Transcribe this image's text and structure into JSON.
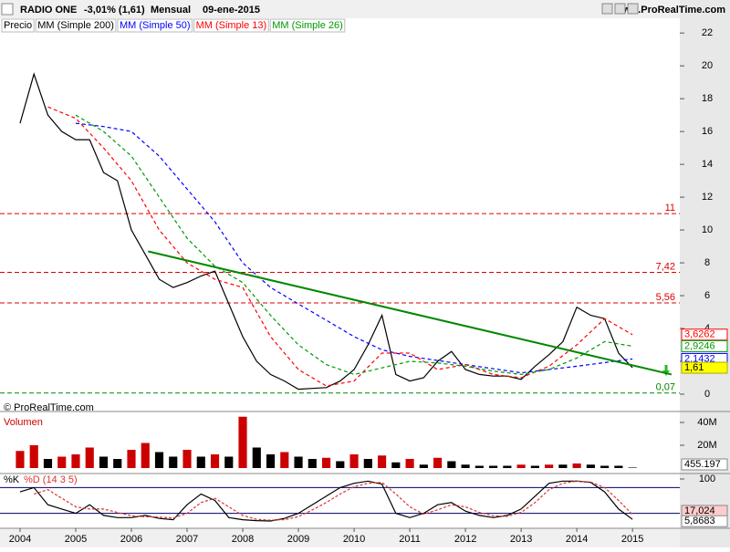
{
  "header": {
    "symbol": "RADIO ONE",
    "change": "-3,01% (1,61)",
    "period": "Mensual",
    "date": "09-ene-2015",
    "site": "www.ProRealTime.com",
    "watermark": "© ProRealTime.com"
  },
  "chart_data": [
    {
      "type": "line",
      "title": "Precio",
      "xlim": [
        2003.64,
        2015.85
      ],
      "ylim": [
        -1,
        22.9
      ],
      "yticks": [
        0,
        2,
        4,
        6,
        8,
        10,
        12,
        14,
        16,
        18,
        20,
        22
      ],
      "series": [
        {
          "name": "Precio",
          "color": "#000000",
          "x": [
            2004,
            2004.25,
            2004.5,
            2004.75,
            2005,
            2005.25,
            2005.5,
            2005.75,
            2006,
            2006.25,
            2006.5,
            2006.75,
            2007,
            2007.25,
            2007.5,
            2007.75,
            2008,
            2008.25,
            2008.5,
            2008.75,
            2009,
            2009.25,
            2009.5,
            2009.75,
            2010,
            2010.25,
            2010.5,
            2010.75,
            2011,
            2011.25,
            2011.5,
            2011.75,
            2012,
            2012.25,
            2012.5,
            2012.75,
            2013,
            2013.25,
            2013.5,
            2013.75,
            2014,
            2014.25,
            2014.5,
            2014.75,
            2015
          ],
          "values": [
            16.5,
            19.5,
            17,
            16,
            15.5,
            15.5,
            13.5,
            13,
            10,
            8.5,
            7,
            6.5,
            6.8,
            7.2,
            7.5,
            5.5,
            3.5,
            2,
            1.2,
            0.8,
            0.3,
            0.35,
            0.4,
            0.8,
            1.5,
            3,
            4.8,
            1.2,
            0.8,
            1,
            2,
            2.6,
            1.5,
            1.2,
            1.1,
            1.1,
            0.9,
            1.7,
            2.4,
            3.2,
            5.3,
            4.8,
            4.6,
            2.5,
            1.61
          ]
        },
        {
          "name": "MM (Simple 200)",
          "color": "#000000",
          "x": [],
          "values": []
        },
        {
          "name": "MM (Simple 50)",
          "color": "#0000ff",
          "x": [
            2005,
            2005.5,
            2006,
            2006.5,
            2007,
            2007.5,
            2008,
            2008.5,
            2009,
            2009.5,
            2010,
            2010.5,
            2011,
            2012,
            2013,
            2014,
            2015
          ],
          "values": [
            16.5,
            16.3,
            16,
            14.5,
            12.5,
            10.5,
            8,
            6.5,
            5.5,
            4.5,
            3.5,
            2.7,
            2.3,
            1.8,
            1.3,
            1.7,
            2.1432
          ]
        },
        {
          "name": "MM (Simple 13)",
          "color": "#ff0000",
          "x": [
            2004.5,
            2005,
            2005.5,
            2006,
            2006.5,
            2007,
            2007.5,
            2008,
            2008.5,
            2009,
            2009.5,
            2010,
            2010.5,
            2011,
            2011.5,
            2012,
            2012.5,
            2013,
            2013.5,
            2014,
            2014.5,
            2015
          ],
          "values": [
            17.5,
            16.8,
            15,
            13,
            10,
            8,
            7,
            6.5,
            3.5,
            1.5,
            0.5,
            0.8,
            2.5,
            2.5,
            1.5,
            1.8,
            1.2,
            1,
            1.7,
            3,
            4.6,
            3.6262
          ]
        },
        {
          "name": "MM (Simple 26)",
          "color": "#009900",
          "x": [
            2005,
            2005.5,
            2006,
            2006.5,
            2007,
            2007.5,
            2008,
            2008.5,
            2009,
            2009.5,
            2010,
            2010.5,
            2011,
            2011.5,
            2012,
            2012.5,
            2013,
            2013.5,
            2014,
            2014.5,
            2015
          ],
          "values": [
            17,
            16,
            14.5,
            12,
            9.5,
            7.8,
            6.8,
            4.8,
            3,
            1.8,
            1.2,
            1.6,
            2,
            1.9,
            1.7,
            1.4,
            1.2,
            1.5,
            2.2,
            3.2,
            2.9246
          ]
        }
      ],
      "trendline": {
        "color": "#008800",
        "x": [
          2006.3,
          2015.7
        ],
        "values": [
          8.7,
          1.2
        ]
      },
      "levels": [
        {
          "value": 11,
          "label": "11",
          "color": "#dd0000"
        },
        {
          "value": 7.42,
          "label": "7,42",
          "color": "#dd0000"
        },
        {
          "value": 5.56,
          "label": "5,56",
          "color": "#dd0000"
        },
        {
          "value": 0.07,
          "label": "0,07",
          "color": "#008800"
        }
      ],
      "last_labels": [
        {
          "value": 3.6262,
          "label": "3,6262",
          "color": "#ff0000"
        },
        {
          "value": 2.9246,
          "label": "2,9246",
          "color": "#009900"
        },
        {
          "value": 2.1432,
          "label": "2,1432",
          "color": "#0000ff"
        },
        {
          "value": 1.61,
          "label": "1,61",
          "color": "#ffff00"
        }
      ]
    },
    {
      "type": "bar",
      "title": "Volumen",
      "xlim": [
        2003.64,
        2015.85
      ],
      "ylim": [
        -4000000,
        46400000
      ],
      "yticks": [
        {
          "value": 40000000,
          "label": "40M"
        },
        {
          "value": 20000000,
          "label": "20M"
        }
      ],
      "x": [
        2004,
        2004.25,
        2004.5,
        2004.75,
        2005,
        2005.25,
        2005.5,
        2005.75,
        2006,
        2006.25,
        2006.5,
        2006.75,
        2007,
        2007.25,
        2007.5,
        2007.75,
        2008,
        2008.25,
        2008.5,
        2008.75,
        2009,
        2009.25,
        2009.5,
        2009.75,
        2010,
        2010.25,
        2010.5,
        2010.75,
        2011,
        2011.25,
        2011.5,
        2011.75,
        2012,
        2012.25,
        2012.5,
        2012.75,
        2013,
        2013.25,
        2013.5,
        2013.75,
        2014,
        2014.25,
        2014.5,
        2014.75,
        2015
      ],
      "values": [
        15000000,
        20000000,
        8000000,
        10000000,
        12000000,
        18000000,
        10000000,
        8000000,
        16000000,
        22000000,
        14000000,
        10000000,
        16000000,
        10000000,
        12000000,
        10000000,
        45000000,
        18000000,
        12000000,
        14000000,
        10000000,
        8000000,
        9000000,
        6000000,
        12000000,
        8000000,
        11000000,
        5000000,
        8000000,
        3000000,
        9000000,
        6000000,
        3000000,
        2000000,
        2000000,
        2000000,
        3000000,
        2000000,
        3000000,
        3000000,
        4000000,
        3000000,
        2000000,
        2000000,
        455197
      ],
      "last_label": {
        "value": 455197,
        "label": "455.197"
      },
      "colors": [
        "#cc0000",
        "#000000"
      ]
    },
    {
      "type": "line",
      "title": "%K",
      "subtitle": "%D (14 3 5)",
      "xlim": [
        2003.64,
        2015.85
      ],
      "ylim": [
        -12.8,
        110.6
      ],
      "yticks": [
        100
      ],
      "levels": [
        80,
        20
      ],
      "xticks": [
        2004,
        2005,
        2006,
        2007,
        2008,
        2009,
        2010,
        2011,
        2012,
        2013,
        2014,
        2015
      ],
      "series": [
        {
          "name": "%K",
          "color": "#000000",
          "x": [
            2004,
            2004.25,
            2004.5,
            2004.75,
            2005,
            2005.25,
            2005.5,
            2005.75,
            2006,
            2006.25,
            2006.5,
            2006.75,
            2007,
            2007.25,
            2007.5,
            2007.75,
            2008,
            2008.25,
            2008.5,
            2008.75,
            2009,
            2009.25,
            2009.5,
            2009.75,
            2010,
            2010.25,
            2010.5,
            2010.75,
            2011,
            2011.25,
            2011.5,
            2011.75,
            2012,
            2012.25,
            2012.5,
            2012.75,
            2013,
            2013.25,
            2013.5,
            2013.75,
            2014,
            2014.25,
            2014.5,
            2014.75,
            2015
          ],
          "values": [
            70,
            80,
            40,
            30,
            20,
            40,
            15,
            10,
            10,
            15,
            8,
            5,
            40,
            65,
            50,
            10,
            5,
            3,
            2,
            8,
            20,
            40,
            60,
            80,
            90,
            95,
            88,
            20,
            10,
            20,
            40,
            45,
            25,
            15,
            10,
            15,
            30,
            60,
            90,
            95,
            95,
            92,
            70,
            30,
            5.8683
          ]
        },
        {
          "name": "%D (14 3 5)",
          "color": "#dd3333",
          "x": [
            2004.25,
            2004.5,
            2004.75,
            2005,
            2005.25,
            2005.5,
            2005.75,
            2006,
            2006.25,
            2006.5,
            2006.75,
            2007,
            2007.25,
            2007.5,
            2007.75,
            2008,
            2008.25,
            2008.5,
            2008.75,
            2009,
            2009.25,
            2009.5,
            2009.75,
            2010,
            2010.25,
            2010.5,
            2010.75,
            2011,
            2011.25,
            2011.5,
            2011.75,
            2012,
            2012.25,
            2012.5,
            2012.75,
            2013,
            2013.25,
            2013.5,
            2013.75,
            2014,
            2014.25,
            2014.5,
            2014.75,
            2015
          ],
          "values": [
            65,
            75,
            55,
            35,
            30,
            30,
            22,
            14,
            12,
            11,
            9,
            20,
            45,
            55,
            35,
            15,
            6,
            4,
            5,
            12,
            28,
            45,
            65,
            82,
            90,
            92,
            65,
            35,
            18,
            28,
            40,
            35,
            22,
            14,
            13,
            22,
            45,
            75,
            90,
            95,
            93,
            80,
            50,
            17.024
          ]
        }
      ],
      "last_labels": [
        {
          "value": 17.024,
          "label": "17,024",
          "color": "#ffcccc"
        },
        {
          "value": 5.8683,
          "label": "5,8683",
          "color": "#ffffff"
        }
      ]
    }
  ]
}
